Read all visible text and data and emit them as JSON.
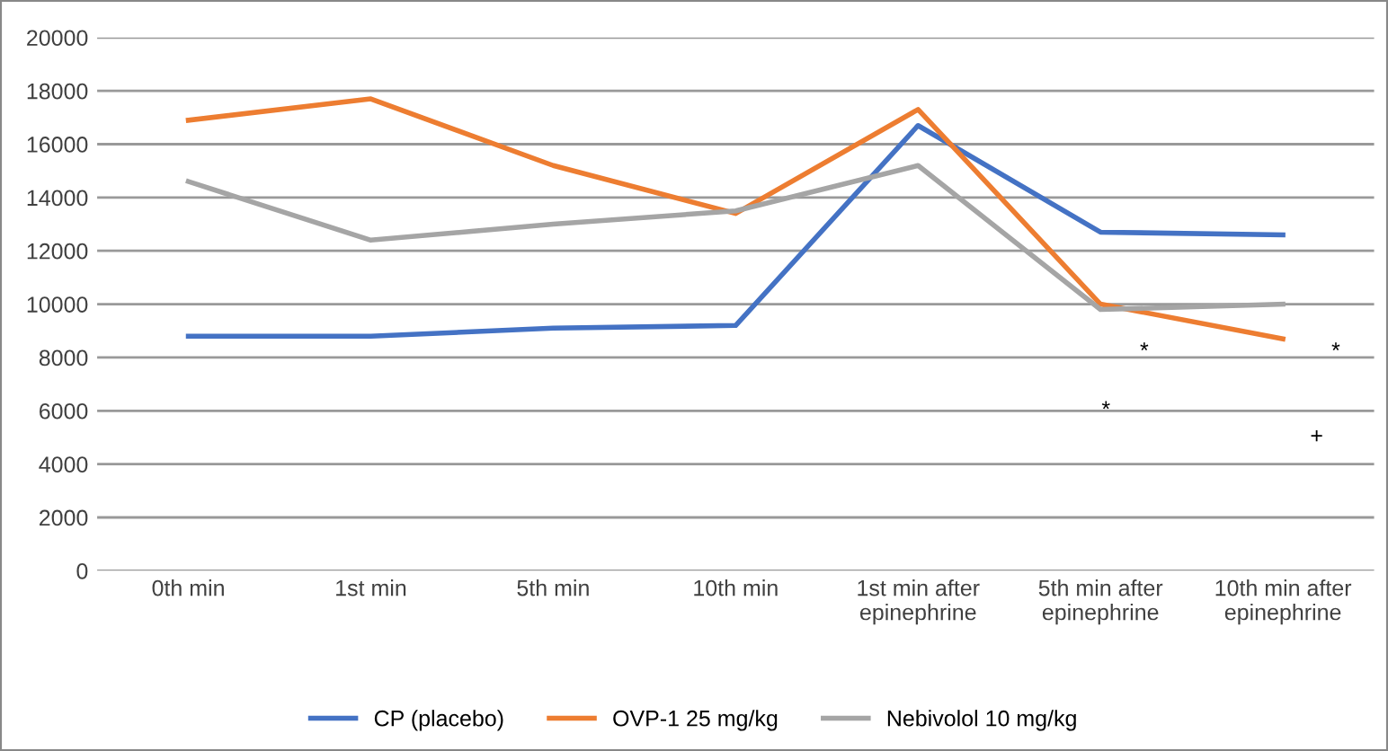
{
  "chart_data": {
    "type": "line",
    "categories": [
      "0th min",
      "1st min",
      "5th min",
      "10th min",
      "1st min after\nepinephrine",
      "5th min after\nepinephrine",
      "10th min after\nepinephrine"
    ],
    "series": [
      {
        "name": "CP (placebo)",
        "color": "#4472c4",
        "values": [
          8800,
          8800,
          9100,
          9200,
          16700,
          12700,
          12600
        ]
      },
      {
        "name": "OVP-1 25 mg/kg",
        "color": "#ed7d31",
        "values": [
          16900,
          17700,
          15200,
          13400,
          17300,
          10000,
          8700
        ]
      },
      {
        "name": "Nebivolol 10 mg/kg",
        "color": "#a5a5a5",
        "values": [
          14600,
          12400,
          13000,
          13500,
          15200,
          9800,
          10000
        ]
      }
    ],
    "ylim": [
      0,
      20000
    ],
    "yticks": [
      0,
      2000,
      4000,
      6000,
      8000,
      10000,
      12000,
      14000,
      16000,
      18000,
      20000
    ],
    "grid": "y",
    "legend": "bottom",
    "marker": "none",
    "line_style": "solid",
    "annotations": [
      "*",
      "*",
      "*",
      "+"
    ]
  }
}
